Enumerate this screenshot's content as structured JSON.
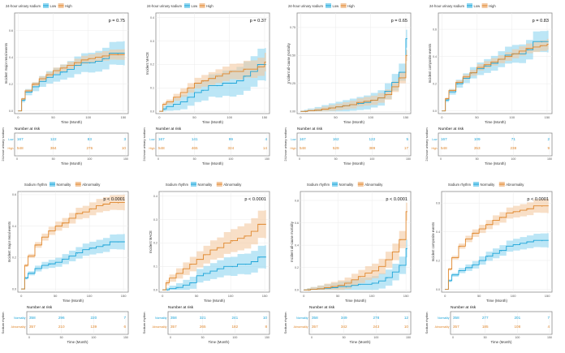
{
  "colors": {
    "low": "#1ba4d8",
    "high": "#e0872c",
    "low_band": "#8fd6f0",
    "high_band": "#f3c9a2",
    "grid": "#ebebeb",
    "frame": "#8c8c8c"
  },
  "chart_data": [
    {
      "type": "line",
      "title": "",
      "legend_title": "24-hour urinary sodium",
      "legend_position": "top",
      "ylabel": "Incident major renal events",
      "xlabel": "Time (Month)",
      "p_value": "p = 0.75",
      "xlim": [
        -5,
        157
      ],
      "ylim": [
        -0.02,
        0.73
      ],
      "xticks": [
        "0",
        "50",
        "100",
        "150"
      ],
      "yticks": [
        "0.0",
        "0.2",
        "0.4",
        "0.6"
      ],
      "time": [
        0,
        5,
        10,
        20,
        30,
        40,
        50,
        60,
        70,
        80,
        90,
        100,
        110,
        120,
        130,
        140,
        150
      ],
      "series": [
        {
          "name": "Low",
          "ci_halfwidth": 0.09,
          "values": [
            0,
            0.08,
            0.14,
            0.18,
            0.22,
            0.25,
            0.27,
            0.29,
            0.31,
            0.34,
            0.36,
            0.36,
            0.37,
            0.39,
            0.43,
            0.43,
            0.43
          ]
        },
        {
          "name": "High",
          "ci_halfwidth": 0.04,
          "values": [
            0,
            0.09,
            0.15,
            0.2,
            0.24,
            0.27,
            0.3,
            0.32,
            0.34,
            0.36,
            0.38,
            0.39,
            0.4,
            0.41,
            0.42,
            0.42,
            0.42
          ]
        }
      ],
      "risk_table": {
        "title": "Number at risk",
        "ylabel": "24-hour urinary sodium",
        "rows": [
          {
            "label": "Low",
            "values": [
              "167",
              "122",
              "83",
              "3"
            ]
          },
          {
            "label": "High",
            "values": [
              "548",
              "384",
              "276",
              "10"
            ]
          }
        ]
      }
    },
    {
      "type": "line",
      "title": "",
      "legend_title": "24-hour urinary sodium",
      "legend_position": "top",
      "ylabel": "Incident MACE",
      "xlabel": "Time (Month)",
      "p_value": "p = 0.37",
      "xlim": [
        -5,
        157
      ],
      "ylim": [
        -0.01,
        0.42
      ],
      "xticks": [
        "0",
        "50",
        "100",
        "150"
      ],
      "yticks": [
        "0.0",
        "0.1",
        "0.2",
        "0.3",
        "0.4"
      ],
      "time": [
        0,
        5,
        10,
        20,
        30,
        40,
        50,
        60,
        70,
        80,
        90,
        100,
        110,
        120,
        130,
        140,
        150
      ],
      "series": [
        {
          "name": "Low",
          "ci_halfwidth": 0.07,
          "values": [
            0,
            0.01,
            0.02,
            0.03,
            0.04,
            0.06,
            0.08,
            0.09,
            0.11,
            0.11,
            0.12,
            0.12,
            0.13,
            0.15,
            0.17,
            0.2,
            0.2
          ]
        },
        {
          "name": "High",
          "ci_halfwidth": 0.04,
          "values": [
            0,
            0.03,
            0.04,
            0.06,
            0.08,
            0.1,
            0.12,
            0.13,
            0.14,
            0.15,
            0.16,
            0.17,
            0.17,
            0.18,
            0.18,
            0.19,
            0.21
          ]
        }
      ],
      "risk_table": {
        "title": "Number at risk",
        "ylabel": "24-hour urinary sodium",
        "rows": [
          {
            "label": "Low",
            "values": [
              "167",
              "141",
              "99",
              "4"
            ]
          },
          {
            "label": "High",
            "values": [
              "548",
              "465",
              "324",
              "14"
            ]
          }
        ]
      }
    },
    {
      "type": "line",
      "title": "",
      "legend_title": "24-hour urinary sodium",
      "legend_position": "top",
      "ylabel": "Incident all-cause mortality",
      "xlabel": "Time (Month)",
      "p_value": "p = 0.65",
      "xlim": [
        -5,
        157
      ],
      "ylim": [
        -0.02,
        0.88
      ],
      "xticks": [
        "0",
        "50",
        "100",
        "150"
      ],
      "yticks": [
        "0.00",
        "0.25",
        "0.50",
        "0.75"
      ],
      "time": [
        0,
        5,
        10,
        20,
        30,
        40,
        50,
        60,
        70,
        80,
        90,
        100,
        110,
        120,
        130,
        140,
        150
      ],
      "series": [
        {
          "name": "Low",
          "ci_halfwidth": 0.08,
          "values": [
            0,
            0,
            0.005,
            0.01,
            0.02,
            0.03,
            0.04,
            0.05,
            0.06,
            0.07,
            0.08,
            0.1,
            0.12,
            0.18,
            0.26,
            0.35,
            0.65
          ]
        },
        {
          "name": "High",
          "ci_halfwidth": 0.05,
          "values": [
            0,
            0,
            0.005,
            0.01,
            0.02,
            0.03,
            0.04,
            0.05,
            0.06,
            0.08,
            0.09,
            0.1,
            0.12,
            0.15,
            0.22,
            0.3,
            0.5
          ]
        }
      ],
      "risk_table": {
        "title": "Number at risk",
        "ylabel": "24-hour urinary sodium",
        "rows": [
          {
            "label": "Low",
            "values": [
              "167",
              "162",
              "122",
              "5"
            ]
          },
          {
            "label": "High",
            "values": [
              "548",
              "529",
              "389",
              "17"
            ]
          }
        ]
      }
    },
    {
      "type": "line",
      "title": "",
      "legend_title": "24-hour urinary sodium",
      "legend_position": "top",
      "ylabel": "Incident composite events",
      "xlabel": "Time (Month)",
      "p_value": "p = 0.83",
      "xlim": [
        -5,
        157
      ],
      "ylim": [
        -0.02,
        0.72
      ],
      "xticks": [
        "0",
        "50",
        "100",
        "150"
      ],
      "yticks": [
        "0.0",
        "0.2",
        "0.4",
        "0.6"
      ],
      "time": [
        0,
        5,
        10,
        20,
        30,
        40,
        50,
        60,
        70,
        80,
        90,
        100,
        110,
        120,
        130,
        140,
        150
      ],
      "series": [
        {
          "name": "Low",
          "ci_halfwidth": 0.08,
          "values": [
            0,
            0.08,
            0.14,
            0.2,
            0.24,
            0.28,
            0.31,
            0.33,
            0.35,
            0.38,
            0.41,
            0.42,
            0.42,
            0.45,
            0.51,
            0.51,
            0.51
          ]
        },
        {
          "name": "High",
          "ci_halfwidth": 0.04,
          "values": [
            0,
            0.09,
            0.15,
            0.21,
            0.25,
            0.28,
            0.32,
            0.34,
            0.36,
            0.38,
            0.4,
            0.42,
            0.44,
            0.46,
            0.47,
            0.48,
            0.49
          ]
        }
      ],
      "risk_table": {
        "title": "Number at risk",
        "ylabel": "24-hour urinary sodium",
        "rows": [
          {
            "label": "Low",
            "values": [
              "167",
              "109",
              "71",
              "2"
            ]
          },
          {
            "label": "High",
            "values": [
              "548",
              "353",
              "238",
              "9"
            ]
          }
        ]
      }
    },
    {
      "type": "line",
      "title": "",
      "legend_title": "Sodium rhythm",
      "legend_position": "top",
      "ylabel": "Incident major renal events",
      "xlabel": "Time (Month)",
      "p_value": "p < 0.0001",
      "xlim": [
        -5,
        157
      ],
      "ylim": [
        -0.02,
        0.62
      ],
      "xticks": [
        "0",
        "50",
        "100",
        "150"
      ],
      "yticks": [
        "0.0",
        "0.2",
        "0.4",
        "0.6"
      ],
      "time": [
        0,
        5,
        10,
        20,
        30,
        40,
        50,
        60,
        70,
        80,
        90,
        100,
        110,
        120,
        130,
        140,
        150
      ],
      "series": [
        {
          "name": "Normality",
          "ci_halfwidth": 0.05,
          "values": [
            0,
            0.07,
            0.1,
            0.13,
            0.15,
            0.16,
            0.17,
            0.19,
            0.21,
            0.23,
            0.25,
            0.26,
            0.27,
            0.28,
            0.3,
            0.3,
            0.3
          ]
        },
        {
          "name": "Abnormality",
          "ci_halfwidth": 0.05,
          "values": [
            0,
            0.15,
            0.21,
            0.28,
            0.33,
            0.37,
            0.4,
            0.42,
            0.45,
            0.48,
            0.49,
            0.51,
            0.53,
            0.54,
            0.55,
            0.55,
            0.55
          ]
        }
      ],
      "risk_table": {
        "title": "Number at risk",
        "ylabel": "Sodium rhythm",
        "rows": [
          {
            "label": "Normality",
            "values": [
              "358",
              "296",
              "220",
              "7"
            ]
          },
          {
            "label": "Abnormality",
            "values": [
              "357",
              "210",
              "139",
              "6"
            ]
          }
        ]
      }
    },
    {
      "type": "line",
      "title": "",
      "legend_title": "Sodium rhythm",
      "legend_position": "top",
      "ylabel": "Incident MACE",
      "xlabel": "Time (Month)",
      "p_value": "p < 0.0001",
      "xlim": [
        -5,
        157
      ],
      "ylim": [
        -0.01,
        0.42
      ],
      "xticks": [
        "0",
        "50",
        "100",
        "150"
      ],
      "yticks": [
        "0.0",
        "0.1",
        "0.2",
        "0.3",
        "0.4"
      ],
      "time": [
        0,
        5,
        10,
        20,
        30,
        40,
        50,
        60,
        70,
        80,
        90,
        100,
        110,
        120,
        130,
        140,
        150
      ],
      "series": [
        {
          "name": "Normality",
          "ci_halfwidth": 0.05,
          "values": [
            0,
            0,
            0.005,
            0.01,
            0.02,
            0.03,
            0.06,
            0.07,
            0.08,
            0.09,
            0.1,
            0.1,
            0.11,
            0.11,
            0.12,
            0.14,
            0.14
          ]
        },
        {
          "name": "Abnormality",
          "ci_halfwidth": 0.06,
          "values": [
            0,
            0.03,
            0.05,
            0.07,
            0.09,
            0.11,
            0.13,
            0.15,
            0.17,
            0.18,
            0.2,
            0.21,
            0.22,
            0.23,
            0.25,
            0.28,
            0.28
          ]
        }
      ],
      "risk_table": {
        "title": "Number at risk",
        "ylabel": "Sodium rhythm",
        "rows": [
          {
            "label": "Normality",
            "values": [
              "358",
              "321",
              "241",
              "10"
            ]
          },
          {
            "label": "Abnormality",
            "values": [
              "357",
              "265",
              "182",
              "8"
            ]
          }
        ]
      }
    },
    {
      "type": "line",
      "title": "",
      "legend_title": "Sodium rhythm",
      "legend_position": "top",
      "ylabel": "Incident all-cause mortality",
      "xlabel": "Time (Month)",
      "p_value": "p < 0.0001",
      "xlim": [
        -5,
        157
      ],
      "ylim": [
        -0.02,
        0.88
      ],
      "xticks": [
        "0",
        "50",
        "100",
        "150"
      ],
      "yticks": [
        "0.0",
        "0.2",
        "0.4",
        "0.6",
        "0.8"
      ],
      "time": [
        0,
        5,
        10,
        20,
        30,
        40,
        50,
        60,
        70,
        80,
        90,
        100,
        110,
        120,
        130,
        140,
        150
      ],
      "series": [
        {
          "name": "Normality",
          "ci_halfwidth": 0.08,
          "values": [
            0,
            0,
            0.005,
            0.01,
            0.015,
            0.02,
            0.03,
            0.03,
            0.04,
            0.05,
            0.05,
            0.06,
            0.08,
            0.11,
            0.16,
            0.22,
            0.37
          ]
        },
        {
          "name": "Abnormality",
          "ci_halfwidth": 0.08,
          "values": [
            0,
            0,
            0.005,
            0.01,
            0.02,
            0.03,
            0.04,
            0.06,
            0.09,
            0.12,
            0.15,
            0.17,
            0.21,
            0.27,
            0.34,
            0.45,
            0.7
          ]
        }
      ],
      "risk_table": {
        "title": "Number at risk",
        "ylabel": "Sodium rhythm",
        "rows": [
          {
            "label": "Normality",
            "values": [
              "358",
              "349",
              "278",
              "12"
            ]
          },
          {
            "label": "Abnormality",
            "values": [
              "357",
              "342",
              "243",
              "10"
            ]
          }
        ]
      }
    },
    {
      "type": "line",
      "title": "",
      "legend_title": "Sodium rhythm",
      "legend_position": "top",
      "ylabel": "Incident composite events",
      "xlabel": "Time (Month)",
      "p_value": "p < 0.0001",
      "xlim": [
        -5,
        157
      ],
      "ylim": [
        -0.02,
        0.68
      ],
      "xticks": [
        "0",
        "50",
        "100",
        "150"
      ],
      "yticks": [
        "0.0",
        "0.2",
        "0.4",
        "0.6"
      ],
      "time": [
        0,
        5,
        10,
        20,
        30,
        40,
        50,
        60,
        70,
        80,
        90,
        100,
        110,
        120,
        130,
        140,
        150
      ],
      "series": [
        {
          "name": "Normality",
          "ci_halfwidth": 0.05,
          "values": [
            0,
            0.06,
            0.1,
            0.13,
            0.15,
            0.17,
            0.2,
            0.23,
            0.25,
            0.27,
            0.3,
            0.31,
            0.32,
            0.33,
            0.34,
            0.34,
            0.34
          ]
        },
        {
          "name": "Abnormality",
          "ci_halfwidth": 0.05,
          "values": [
            0,
            0.14,
            0.22,
            0.3,
            0.35,
            0.39,
            0.42,
            0.45,
            0.48,
            0.5,
            0.53,
            0.54,
            0.55,
            0.56,
            0.58,
            0.58,
            0.58
          ]
        }
      ],
      "risk_table": {
        "title": "Number at risk",
        "ylabel": "Sodium rhythm",
        "rows": [
          {
            "label": "Normality",
            "values": [
              "358",
              "277",
              "201",
              "7"
            ]
          },
          {
            "label": "Abnormality",
            "values": [
              "357",
              "185",
              "108",
              "4"
            ]
          }
        ]
      }
    }
  ]
}
